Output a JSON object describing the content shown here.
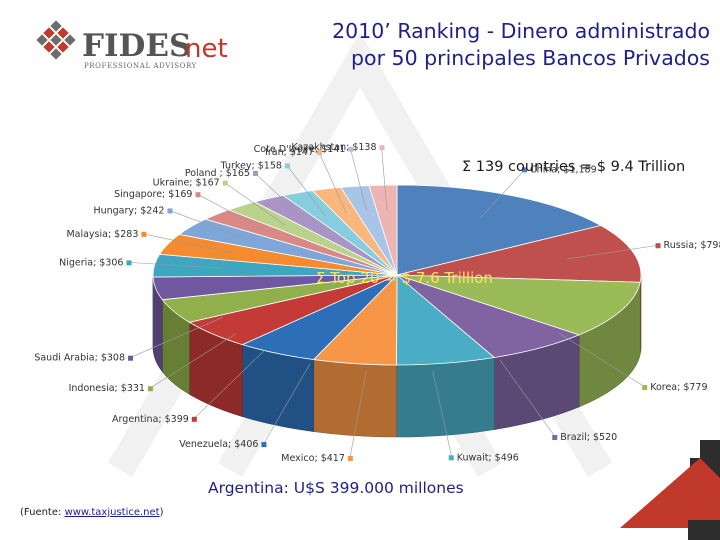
{
  "header": {
    "logo_main": "FIDES",
    "logo_net": "net",
    "logo_sub": "PROFESSIONAL ADVISORY",
    "title_line1": "2010’ Ranking - Dinero administrado",
    "title_line2": "por 50 principales Bancos Privados"
  },
  "chart_data": {
    "type": "pie",
    "style": "3d",
    "annotations": {
      "total_countries": "Σ 139 countries = $ 9.4 Trillion",
      "top20": "Σ Top 20 = $ 7.6 Trillion"
    },
    "slices": [
      {
        "label": "China; $1,189",
        "value": 1189,
        "color": "#4f81bd"
      },
      {
        "label": "Russia; $798",
        "value": 798,
        "color": "#c0504d"
      },
      {
        "label": "Korea; $779",
        "value": 779,
        "color": "#9bbb59"
      },
      {
        "label": "Brazil; $520",
        "value": 520,
        "color": "#8064a2"
      },
      {
        "label": "Kuwait; $496",
        "value": 496,
        "color": "#4bacc6"
      },
      {
        "label": "Mexico; $417",
        "value": 417,
        "color": "#f79646"
      },
      {
        "label": "Venezuela; $406",
        "value": 406,
        "color": "#2c6fb8"
      },
      {
        "label": "Argentina; $399",
        "value": 399,
        "color": "#c33a36"
      },
      {
        "label": "Indonesia; $331",
        "value": 331,
        "color": "#8fb04a"
      },
      {
        "label": "Saudi Arabia; $308",
        "value": 308,
        "color": "#7058a0"
      },
      {
        "label": "Nigeria; $306",
        "value": 306,
        "color": "#3fa6c2"
      },
      {
        "label": "Malaysia; $283",
        "value": 283,
        "color": "#f58a2e"
      },
      {
        "label": "Hungary; $242",
        "value": 242,
        "color": "#7ea6d8"
      },
      {
        "label": "Singapore; $169",
        "value": 169,
        "color": "#d98886"
      },
      {
        "label": "Ukraine; $167",
        "value": 167,
        "color": "#b9d38c"
      },
      {
        "label": "Poland ; $165",
        "value": 165,
        "color": "#a994c6"
      },
      {
        "label": "Turkey; $158",
        "value": 158,
        "color": "#86cde0"
      },
      {
        "label": "Iran; $147",
        "value": 147,
        "color": "#f9b77e"
      },
      {
        "label": "Cote D'Ivoire; $141",
        "value": 141,
        "color": "#a8c4e6"
      },
      {
        "label": "Kazakhstan; $138",
        "value": 138,
        "color": "#ecb5b3"
      }
    ]
  },
  "caption": "Argentina:  U$S 399.000 millones",
  "source": {
    "prefix": "(Fuente: ",
    "link": "www.taxjustice.net",
    "suffix": ")"
  },
  "colors": {
    "title": "#1f1f8a",
    "logo_red": "#c0392b",
    "logo_gray": "#6d6d6d"
  }
}
